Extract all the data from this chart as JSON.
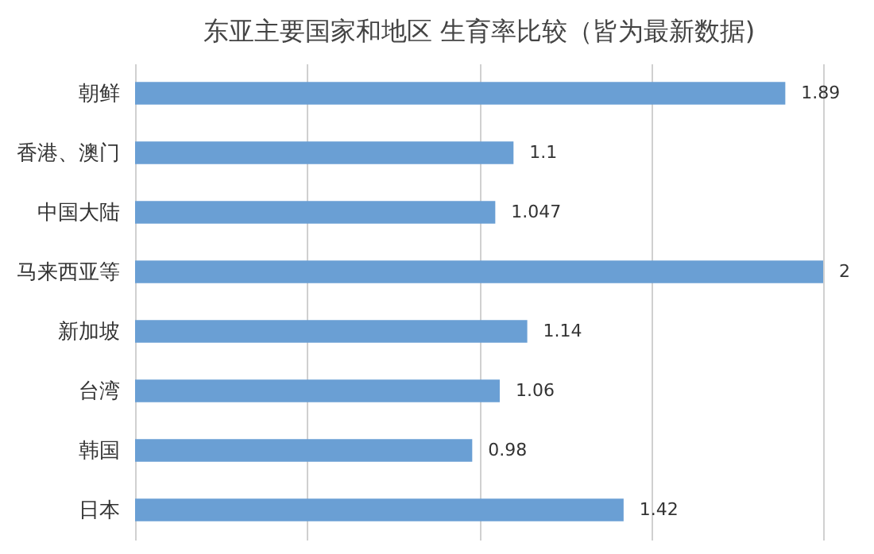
{
  "chart_data": {
    "type": "bar",
    "orientation": "horizontal",
    "title": "东亚主要国家和地区 生育率比较（皆为最新数据)",
    "categories": [
      "朝鲜",
      "香港、澳门",
      "中国大陆",
      "马来西亚等",
      "新加坡",
      "台湾",
      "韩国",
      "日本"
    ],
    "values": [
      1.89,
      1.1,
      1.047,
      2,
      1.14,
      1.06,
      0.98,
      1.42
    ],
    "color": "#6a9fd4",
    "xlim": [
      0,
      2
    ],
    "xticks": [
      {
        "value": 0,
        "label": null
      },
      {
        "value": 0.5,
        "label": null
      },
      {
        "value": 1,
        "label": null
      },
      {
        "value": 1.5,
        "label": null
      },
      {
        "value": 2,
        "label": null
      }
    ],
    "grid": "x",
    "tick_labels": "y",
    "data_labels": true
  }
}
